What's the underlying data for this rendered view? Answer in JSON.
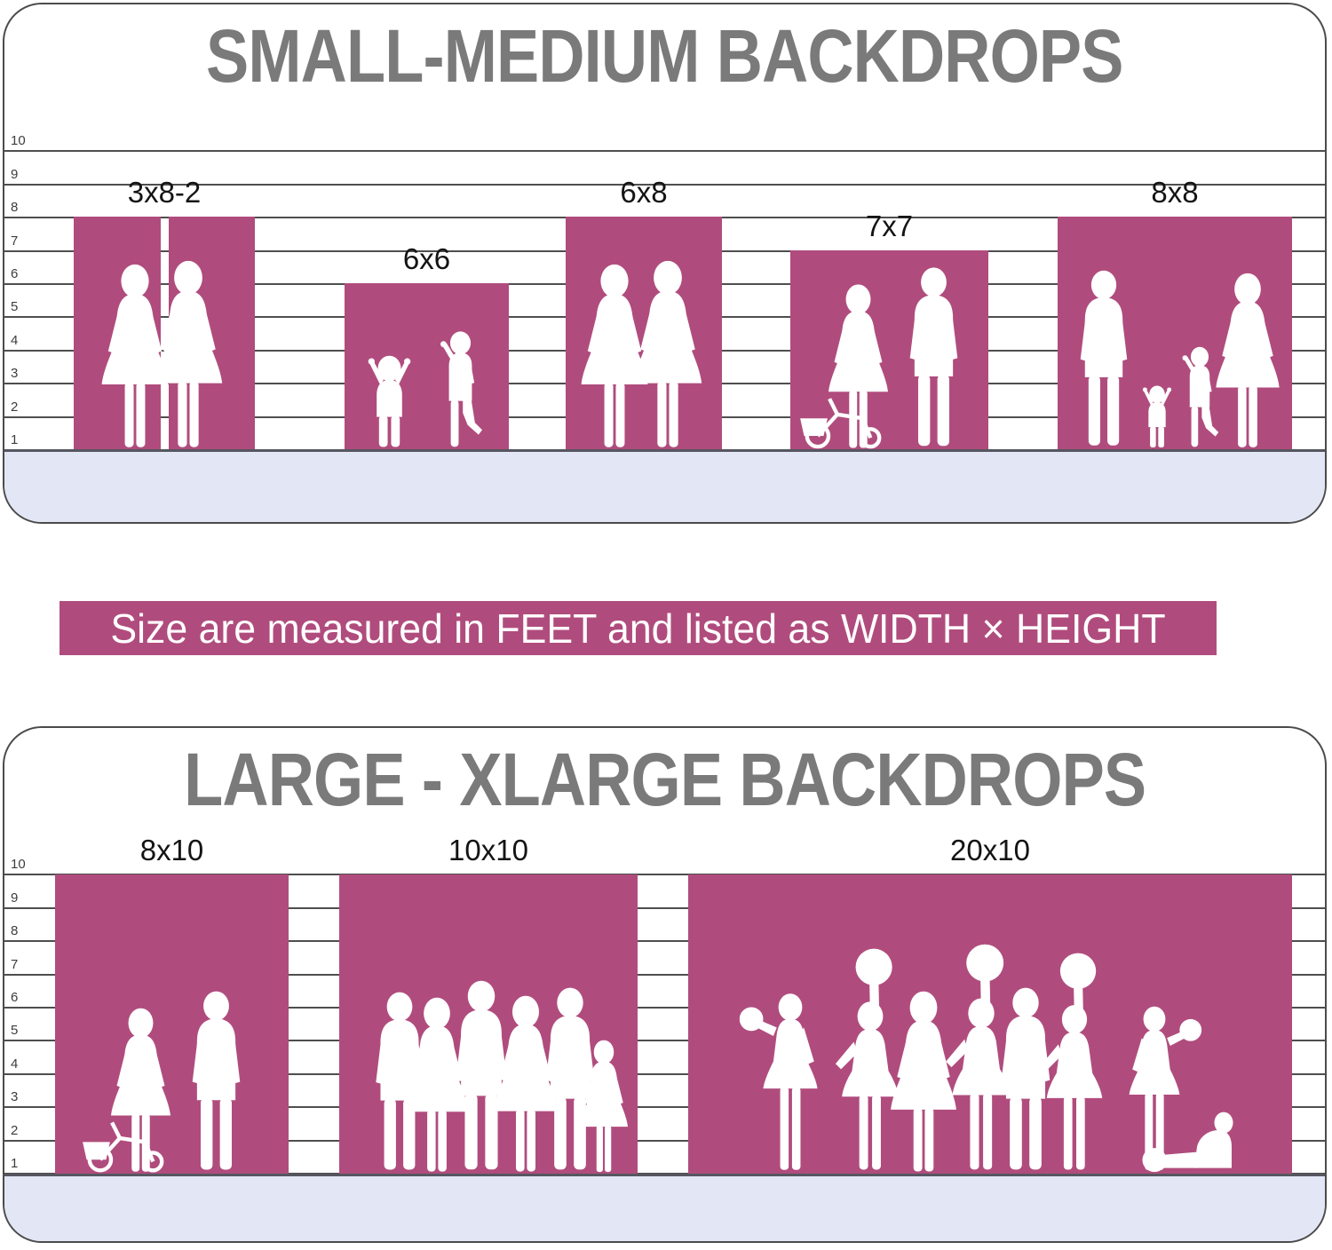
{
  "banner": {
    "text": "Size are measured in FEET and listed as WIDTH × HEIGHT",
    "background": "#b04c7d",
    "text_color": "#ffffff"
  },
  "colors": {
    "backdrop_pink": "#b04c7d",
    "floor_lavender": "#e2e6f5",
    "title_gray": "#7a7a7a",
    "grid_line": "#4e4e4e",
    "panel_border": "#4b4b4b",
    "label_black": "#141414"
  },
  "panels": [
    {
      "title": "SMALL-MEDIUM BACKDROPS",
      "axis_ticks": [
        "10",
        "9",
        "8",
        "7",
        "6",
        "5",
        "4",
        "3",
        "2",
        "1"
      ],
      "bars": [
        {
          "label": "3x8-2",
          "width_ft": 3,
          "height_ft": 8,
          "panel_count": 2,
          "figures": "two-women"
        },
        {
          "label": "6x6",
          "width_ft": 6,
          "height_ft": 6,
          "panel_count": 1,
          "figures": "two-kids"
        },
        {
          "label": "6x8",
          "width_ft": 6,
          "height_ft": 8,
          "panel_count": 1,
          "figures": "two-women"
        },
        {
          "label": "7x7",
          "width_ft": 7,
          "height_ft": 7,
          "panel_count": 1,
          "figures": "woman-bicycle-man"
        },
        {
          "label": "8x8",
          "width_ft": 8,
          "height_ft": 8,
          "panel_count": 1,
          "figures": "family-of-four"
        }
      ]
    },
    {
      "title": "LARGE - XLARGE BACKDROPS",
      "axis_ticks": [
        "10",
        "9",
        "8",
        "7",
        "6",
        "5",
        "4",
        "3",
        "2",
        "1"
      ],
      "bars": [
        {
          "label": "8x10",
          "width_ft": 8,
          "height_ft": 10,
          "panel_count": 1,
          "figures": "woman-bicycle-man"
        },
        {
          "label": "10x10",
          "width_ft": 10,
          "height_ft": 10,
          "panel_count": 1,
          "figures": "group-of-five"
        },
        {
          "label": "20x10",
          "width_ft": 20,
          "height_ft": 10,
          "panel_count": 1,
          "figures": "cheerleading-squad"
        }
      ]
    }
  ],
  "chart_data": {
    "type": "bar",
    "unit": "feet",
    "ylim": [
      1,
      10
    ],
    "grid": true,
    "note": "Size are measured in FEET and listed as WIDTH × HEIGHT",
    "groups": [
      {
        "title": "SMALL-MEDIUM BACKDROPS",
        "categories": [
          "3x8-2",
          "6x6",
          "6x8",
          "7x7",
          "8x8"
        ],
        "width_ft": [
          3,
          6,
          6,
          7,
          8
        ],
        "height_ft": [
          8,
          6,
          8,
          7,
          8
        ],
        "notes": "3x8-2 is shown as two 3x8 panels side by side"
      },
      {
        "title": "LARGE - XLARGE BACKDROPS",
        "categories": [
          "8x10",
          "10x10",
          "20x10"
        ],
        "width_ft": [
          8,
          10,
          20
        ],
        "height_ft": [
          10,
          10,
          10
        ]
      }
    ]
  }
}
